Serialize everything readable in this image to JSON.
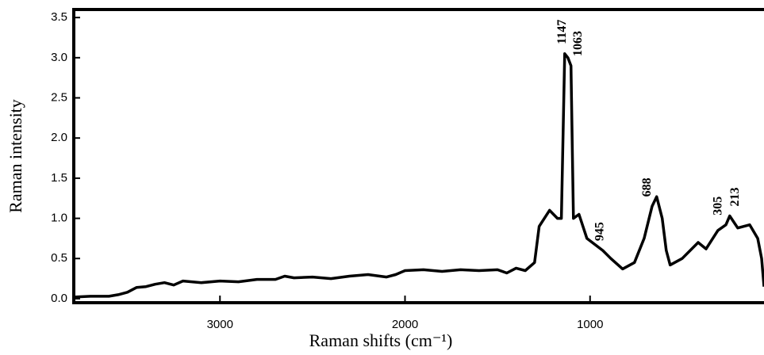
{
  "chart_data": {
    "type": "line",
    "xlabel": "Raman shifts (cm⁻¹)",
    "ylabel": "Raman intensity",
    "x": [
      3790,
      3700,
      3600,
      3550,
      3500,
      3450,
      3400,
      3350,
      3300,
      3250,
      3200,
      3100,
      3000,
      2900,
      2800,
      2700,
      2650,
      2600,
      2500,
      2400,
      2300,
      2200,
      2100,
      2050,
      2000,
      1900,
      1800,
      1700,
      1600,
      1500,
      1450,
      1400,
      1350,
      1300,
      1275,
      1219,
      1176,
      1155,
      1137,
      1120,
      1103,
      1090,
      1060,
      1017,
      931,
      888,
      824,
      760,
      708,
      665,
      640,
      610,
      588,
      567,
      502,
      416,
      373,
      309,
      266,
      245,
      202,
      137,
      94,
      73,
      60
    ],
    "series": [
      {
        "color": "#000000",
        "values": [
          0.02,
          0.03,
          0.03,
          0.05,
          0.08,
          0.14,
          0.15,
          0.18,
          0.2,
          0.17,
          0.22,
          0.2,
          0.22,
          0.21,
          0.24,
          0.24,
          0.28,
          0.26,
          0.27,
          0.25,
          0.28,
          0.3,
          0.27,
          0.3,
          0.35,
          0.36,
          0.34,
          0.36,
          0.35,
          0.36,
          0.32,
          0.38,
          0.35,
          0.45,
          0.9,
          1.1,
          1.0,
          1.0,
          3.05,
          3.0,
          2.9,
          1.0,
          1.05,
          0.75,
          0.6,
          0.5,
          0.37,
          0.45,
          0.75,
          1.15,
          1.27,
          1.0,
          0.6,
          0.42,
          0.5,
          0.7,
          0.62,
          0.85,
          0.92,
          1.03,
          0.88,
          0.92,
          0.75,
          0.5,
          0.15
        ]
      }
    ],
    "peak_labels": [
      1147,
      1063,
      945,
      688,
      305,
      213
    ],
    "xlim": [
      3790,
      60
    ],
    "ylim": [
      -0.05,
      3.6
    ],
    "xticks": [
      3000,
      2000,
      1000
    ],
    "yticks": [
      {
        "value": 0,
        "label": "0.0"
      },
      0.5,
      {
        "value": 1,
        "label": "1.0"
      },
      1.5,
      {
        "value": 2,
        "label": "2.0"
      },
      2.5,
      {
        "value": 3,
        "label": "3.0"
      },
      3.5
    ]
  }
}
